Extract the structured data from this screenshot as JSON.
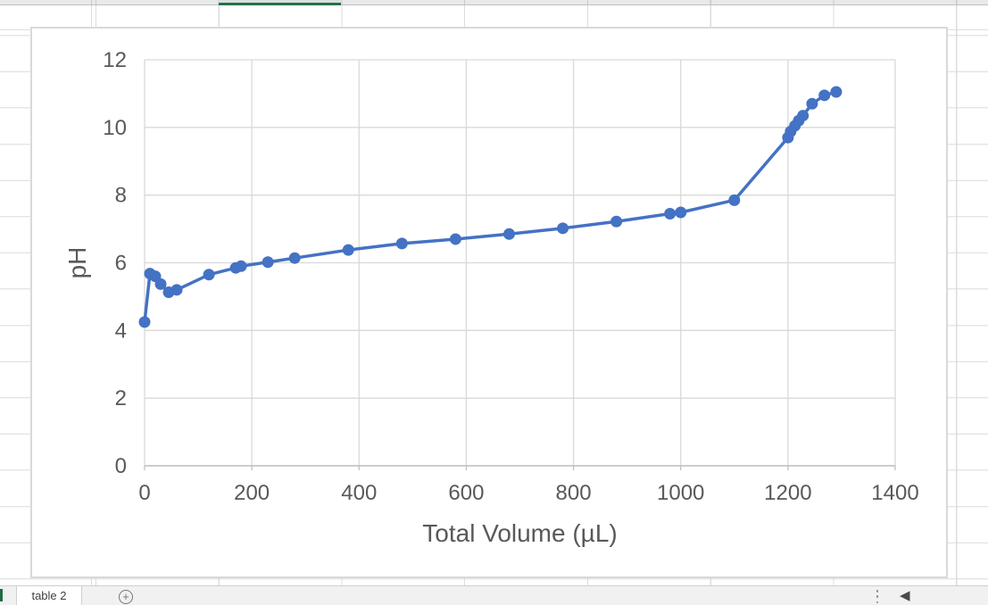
{
  "colors": {
    "series_blue": "#4472C4",
    "grid_line": "#d9d9d9",
    "axis_line": "#bfbfbf",
    "axis_text": "#595959",
    "accent_green": "#217346"
  },
  "sheet": {
    "tab_label": "table 2",
    "new_sheet_label": "+",
    "scroll_left_glyph": "◀"
  },
  "chart_data": {
    "type": "line",
    "title": "",
    "xlabel": "Total Volume (µL)",
    "ylabel": "pH",
    "xlim": [
      0,
      1400
    ],
    "ylim": [
      0,
      12
    ],
    "xticks": [
      0,
      200,
      400,
      600,
      800,
      1000,
      1200,
      1400
    ],
    "yticks": [
      0,
      2,
      4,
      6,
      8,
      10,
      12
    ],
    "grid": true,
    "legend": false,
    "series": [
      {
        "name": "pH",
        "marker": "circle",
        "x": [
          0,
          10,
          20,
          30,
          45,
          60,
          120,
          170,
          180,
          230,
          280,
          380,
          480,
          580,
          680,
          780,
          880,
          980,
          1000,
          1100,
          1200,
          1205,
          1213,
          1220,
          1228,
          1245,
          1268,
          1290
        ],
        "y": [
          4.25,
          5.68,
          5.6,
          5.37,
          5.13,
          5.2,
          5.65,
          5.85,
          5.9,
          6.02,
          6.14,
          6.38,
          6.57,
          6.7,
          6.85,
          7.02,
          7.22,
          7.45,
          7.49,
          7.85,
          9.7,
          9.88,
          10.05,
          10.2,
          10.35,
          10.7,
          10.95,
          11.05
        ]
      }
    ]
  }
}
